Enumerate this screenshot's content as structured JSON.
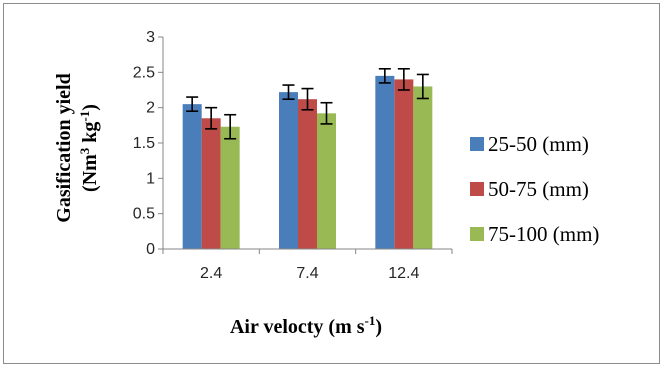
{
  "chart_data": {
    "type": "bar",
    "categories": [
      "2.4",
      "7.4",
      "12.4"
    ],
    "series": [
      {
        "name": "25-50 (mm)",
        "color": "#4a7ebb",
        "values": [
          2.05,
          2.22,
          2.45
        ],
        "errors": [
          0.1,
          0.1,
          0.1
        ]
      },
      {
        "name": "50-75 (mm)",
        "color": "#be4b48",
        "values": [
          1.85,
          2.12,
          2.4
        ],
        "errors": [
          0.15,
          0.15,
          0.15
        ]
      },
      {
        "name": "75-100 (mm)",
        "color": "#98b954",
        "values": [
          1.73,
          1.92,
          2.3
        ],
        "errors": [
          0.17,
          0.15,
          0.17
        ]
      }
    ],
    "ylim": [
      0,
      3
    ],
    "yticks": [
      "0",
      "0.5",
      "1",
      "1.5",
      "2",
      "2.5",
      "3"
    ],
    "ylabel": {
      "line1": "Gasification yield",
      "line2_a": "(Nm",
      "line2_sup1": "3",
      "line2_b": " kg",
      "line2_sup2": "-1",
      "line2_c": ")"
    },
    "xlabel": {
      "main": "Air velocty (m s",
      "sup": "-1",
      "end": ")"
    },
    "legend_position": "right",
    "grid": false
  }
}
